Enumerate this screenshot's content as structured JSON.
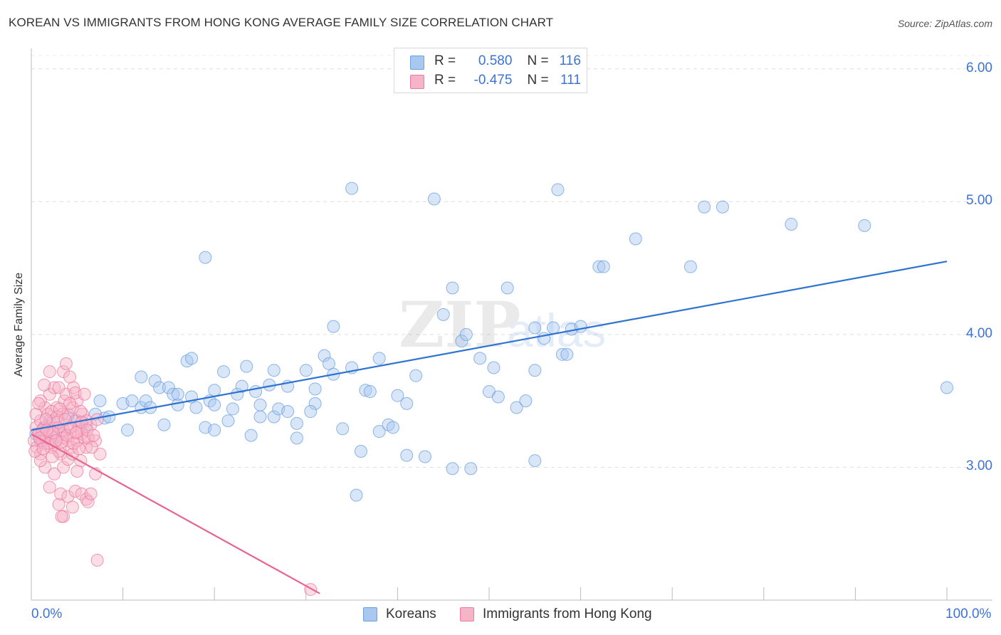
{
  "title": "KOREAN VS IMMIGRANTS FROM HONG KONG AVERAGE FAMILY SIZE CORRELATION CHART",
  "source": "Source: ZipAtlas.com",
  "legend": {
    "r_label": "R =",
    "n_label": "N =",
    "series": [
      {
        "name": "Koreans",
        "r": "0.580",
        "n": "116",
        "color": "#a9c8ef",
        "stroke": "#6a9fe0"
      },
      {
        "name": "Immigrants from Hong Kong",
        "r": "-0.475",
        "n": "111",
        "color": "#f6b4c8",
        "stroke": "#ee7aa0"
      }
    ]
  },
  "chart_data": {
    "type": "scatter",
    "title": "KOREAN VS IMMIGRANTS FROM HONG KONG AVERAGE FAMILY SIZE CORRELATION CHART",
    "xlabel": "",
    "ylabel": "Average Family Size",
    "xlim": [
      0,
      100
    ],
    "ylim": [
      2.0,
      6.1
    ],
    "x_tick_labels": [
      "0.0%",
      "100.0%"
    ],
    "y_ticks": [
      3.0,
      4.0,
      5.0,
      6.0
    ],
    "y_tick_labels": [
      "3.00",
      "4.00",
      "5.00",
      "6.00"
    ],
    "series": [
      {
        "name": "Koreans",
        "color": "#a9c8ef",
        "trend": {
          "x": [
            0,
            100
          ],
          "y": [
            3.28,
            4.55
          ],
          "color": "#2e72d2"
        },
        "points": [
          [
            0.5,
            3.25
          ],
          [
            1,
            3.2
          ],
          [
            1.5,
            3.3
          ],
          [
            2,
            3.35
          ],
          [
            2.5,
            3.22
          ],
          [
            3,
            3.3
          ],
          [
            4,
            3.38
          ],
          [
            5,
            3.35
          ],
          [
            6,
            3.32
          ],
          [
            7,
            3.4
          ],
          [
            7.5,
            3.5
          ],
          [
            8,
            3.37
          ],
          [
            8.5,
            3.38
          ],
          [
            10,
            3.48
          ],
          [
            10.5,
            3.28
          ],
          [
            11,
            3.5
          ],
          [
            12,
            3.45
          ],
          [
            12.5,
            3.5
          ],
          [
            13,
            3.45
          ],
          [
            12,
            3.68
          ],
          [
            13.5,
            3.65
          ],
          [
            14,
            3.6
          ],
          [
            15,
            3.6
          ],
          [
            15.5,
            3.55
          ],
          [
            14.5,
            3.32
          ],
          [
            16,
            3.47
          ],
          [
            16,
            3.55
          ],
          [
            17,
            3.8
          ],
          [
            17.5,
            3.82
          ],
          [
            17.5,
            3.53
          ],
          [
            18,
            3.45
          ],
          [
            19,
            3.3
          ],
          [
            19.5,
            3.5
          ],
          [
            20,
            3.47
          ],
          [
            19,
            4.58
          ],
          [
            20,
            3.58
          ],
          [
            21,
            3.72
          ],
          [
            21.5,
            3.35
          ],
          [
            22,
            3.44
          ],
          [
            22.5,
            3.55
          ],
          [
            23,
            3.61
          ],
          [
            23.5,
            3.76
          ],
          [
            24,
            3.24
          ],
          [
            24.5,
            3.57
          ],
          [
            25,
            3.38
          ],
          [
            25,
            3.47
          ],
          [
            26,
            3.62
          ],
          [
            26.5,
            3.73
          ],
          [
            26.5,
            3.38
          ],
          [
            27,
            3.44
          ],
          [
            28,
            3.42
          ],
          [
            28,
            3.61
          ],
          [
            29,
            3.33
          ],
          [
            29,
            3.22
          ],
          [
            30,
            3.73
          ],
          [
            31,
            3.48
          ],
          [
            30.5,
            3.42
          ],
          [
            31,
            3.59
          ],
          [
            32,
            3.84
          ],
          [
            32.5,
            3.78
          ],
          [
            33,
            3.7
          ],
          [
            33,
            4.06
          ],
          [
            34,
            3.29
          ],
          [
            35,
            3.75
          ],
          [
            35,
            5.1
          ],
          [
            36,
            3.12
          ],
          [
            36.5,
            3.58
          ],
          [
            37,
            3.57
          ],
          [
            38,
            3.82
          ],
          [
            38,
            3.27
          ],
          [
            39,
            3.32
          ],
          [
            39.5,
            3.3
          ],
          [
            40,
            3.54
          ],
          [
            41,
            3.48
          ],
          [
            42,
            3.69
          ],
          [
            43,
            3.08
          ],
          [
            44,
            5.02
          ],
          [
            45,
            4.15
          ],
          [
            46,
            4.35
          ],
          [
            46,
            2.99
          ],
          [
            47,
            3.95
          ],
          [
            47.5,
            4.0
          ],
          [
            48,
            2.99
          ],
          [
            49,
            3.82
          ],
          [
            50,
            3.57
          ],
          [
            50.5,
            3.75
          ],
          [
            51,
            3.53
          ],
          [
            52,
            4.35
          ],
          [
            53,
            3.45
          ],
          [
            54,
            3.5
          ],
          [
            55,
            3.73
          ],
          [
            55,
            4.05
          ],
          [
            56,
            3.97
          ],
          [
            57,
            4.05
          ],
          [
            57.5,
            5.09
          ],
          [
            58,
            3.85
          ],
          [
            58.5,
            3.85
          ],
          [
            59,
            4.04
          ],
          [
            60,
            4.06
          ],
          [
            62,
            4.51
          ],
          [
            62.5,
            4.51
          ],
          [
            66,
            4.72
          ],
          [
            72,
            4.51
          ],
          [
            73.5,
            4.96
          ],
          [
            75.5,
            4.96
          ],
          [
            83,
            4.83
          ],
          [
            91,
            4.82
          ],
          [
            100,
            3.6
          ],
          [
            55,
            3.05
          ],
          [
            35.5,
            2.79
          ],
          [
            41,
            3.09
          ],
          [
            20,
            3.28
          ]
        ]
      },
      {
        "name": "Immigrants from Hong Kong",
        "color": "#f6b4c8",
        "trend": {
          "x": [
            0,
            31.5
          ],
          "y": [
            3.25,
            2.05
          ],
          "color": "#e8638f"
        },
        "points": [
          [
            0.3,
            3.2
          ],
          [
            0.5,
            3.3
          ],
          [
            0.6,
            3.15
          ],
          [
            0.8,
            3.25
          ],
          [
            1,
            3.35
          ],
          [
            1,
            3.1
          ],
          [
            1.2,
            3.2
          ],
          [
            1.4,
            3.3
          ],
          [
            1.5,
            3.45
          ],
          [
            1.6,
            3.22
          ],
          [
            1.8,
            3.4
          ],
          [
            2,
            3.3
          ],
          [
            2,
            3.55
          ],
          [
            2.1,
            3.25
          ],
          [
            2.2,
            3.15
          ],
          [
            2.4,
            3.35
          ],
          [
            2.5,
            3.6
          ],
          [
            2.6,
            3.2
          ],
          [
            2.8,
            3.45
          ],
          [
            3,
            3.3
          ],
          [
            3,
            3.6
          ],
          [
            3.2,
            3.1
          ],
          [
            3.4,
            3.4
          ],
          [
            3.5,
            3.25
          ],
          [
            3.6,
            3.5
          ],
          [
            3.8,
            3.55
          ],
          [
            4,
            3.4
          ],
          [
            4,
            3.2
          ],
          [
            4.2,
            3.3
          ],
          [
            4.4,
            3.15
          ],
          [
            4.5,
            3.45
          ],
          [
            4.6,
            3.6
          ],
          [
            4.8,
            3.35
          ],
          [
            5,
            3.2
          ],
          [
            5,
            3.5
          ],
          [
            5.2,
            3.3
          ],
          [
            5.4,
            3.05
          ],
          [
            5.5,
            3.25
          ],
          [
            5.6,
            3.4
          ],
          [
            5.8,
            3.22
          ],
          [
            6,
            3.35
          ],
          [
            6,
            3.15
          ],
          [
            1,
            3.5
          ],
          [
            1.5,
            3.0
          ],
          [
            2,
            2.85
          ],
          [
            2.5,
            2.95
          ],
          [
            3,
            2.72
          ],
          [
            3.2,
            2.8
          ],
          [
            3.5,
            2.63
          ],
          [
            3.5,
            3.0
          ],
          [
            4,
            2.78
          ],
          [
            4.5,
            2.7
          ],
          [
            4.8,
            2.82
          ],
          [
            5,
            2.97
          ],
          [
            5.5,
            2.8
          ],
          [
            6,
            2.76
          ],
          [
            6.2,
            2.74
          ],
          [
            6.5,
            2.8
          ],
          [
            7,
            2.95
          ],
          [
            6.5,
            3.32
          ],
          [
            7,
            3.2
          ],
          [
            7.5,
            3.1
          ],
          [
            1,
            3.05
          ],
          [
            2,
            3.18
          ],
          [
            3,
            3.12
          ],
          [
            3.5,
            3.28
          ],
          [
            4,
            3.06
          ],
          [
            4.5,
            3.1
          ],
          [
            5,
            3.27
          ],
          [
            0.5,
            3.4
          ],
          [
            1.2,
            3.28
          ],
          [
            1.8,
            3.18
          ],
          [
            2.2,
            3.42
          ],
          [
            2.8,
            3.38
          ],
          [
            3.4,
            3.22
          ],
          [
            4.2,
            3.48
          ],
          [
            4.8,
            3.56
          ],
          [
            5.4,
            3.42
          ],
          [
            5.8,
            3.55
          ],
          [
            6.2,
            3.22
          ],
          [
            6.6,
            3.15
          ],
          [
            3.5,
            3.72
          ],
          [
            3.8,
            3.78
          ],
          [
            4.2,
            3.68
          ],
          [
            2,
            3.72
          ],
          [
            1.4,
            3.62
          ],
          [
            0.8,
            3.48
          ],
          [
            1.6,
            3.36
          ],
          [
            2.4,
            3.26
          ],
          [
            2.9,
            3.34
          ],
          [
            3.3,
            3.19
          ],
          [
            3.9,
            3.24
          ],
          [
            4.6,
            3.18
          ],
          [
            5.2,
            3.14
          ],
          [
            0.4,
            3.12
          ],
          [
            0.9,
            3.22
          ],
          [
            1.3,
            3.14
          ],
          [
            1.7,
            3.28
          ],
          [
            2.3,
            3.08
          ],
          [
            2.7,
            3.2
          ],
          [
            3.1,
            3.44
          ],
          [
            3.7,
            3.36
          ],
          [
            4.3,
            3.3
          ],
          [
            4.9,
            3.26
          ],
          [
            5.5,
            3.34
          ],
          [
            6.1,
            3.28
          ],
          [
            6.8,
            3.24
          ],
          [
            7.2,
            3.36
          ],
          [
            7.2,
            2.3
          ],
          [
            30.5,
            2.08
          ],
          [
            3.3,
            2.63
          ]
        ]
      }
    ]
  }
}
